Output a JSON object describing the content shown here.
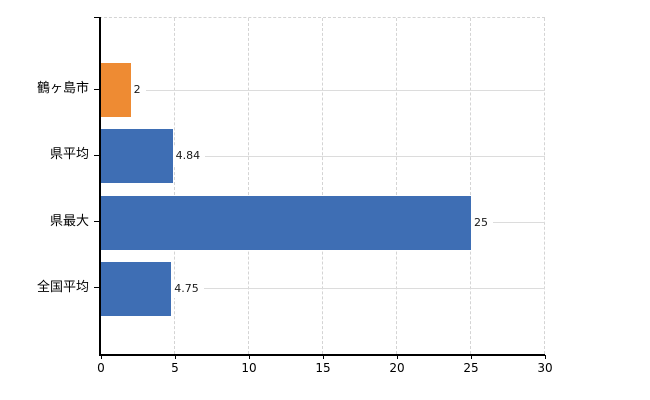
{
  "chart_data": {
    "type": "bar",
    "orientation": "horizontal",
    "categories": [
      "鶴ヶ島市",
      "県平均",
      "県最大",
      "全国平均"
    ],
    "values": [
      2,
      4.84,
      25,
      4.75
    ],
    "value_labels": [
      "2",
      "4.84",
      "25",
      "4.75"
    ],
    "bar_colors": [
      "#EE8B33",
      "#3E6EB4",
      "#3E6EB4",
      "#3E6EB4"
    ],
    "xlim": [
      0,
      30
    ],
    "xticks": [
      0,
      5,
      10,
      15,
      20,
      25,
      30
    ],
    "xtick_labels": [
      "0",
      "5",
      "10",
      "15",
      "20",
      "25",
      "30"
    ],
    "grid": true,
    "legend_position": "none",
    "colors": {
      "bar_default": "#3E6EB4",
      "bar_highlight": "#EE8B33",
      "axis": "#000000",
      "gridline": "#D4D4D4",
      "leader_line": "#DCDCDC",
      "text": "#000000",
      "value_text": "#1A1A1A",
      "background": "#FFFFFF"
    }
  }
}
